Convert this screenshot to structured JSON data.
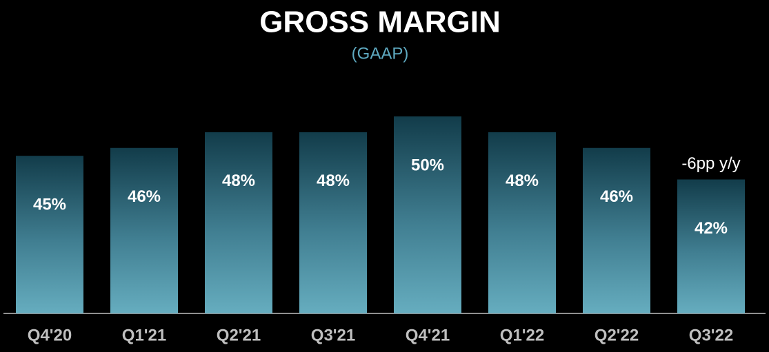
{
  "chart_data": {
    "type": "bar",
    "title": "GROSS MARGIN",
    "subtitle": "(GAAP)",
    "categories": [
      "Q4'20",
      "Q1'21",
      "Q2'21",
      "Q3'21",
      "Q4'21",
      "Q1'22",
      "Q2'22",
      "Q3'22"
    ],
    "values": [
      45,
      46,
      48,
      48,
      50,
      48,
      46,
      42
    ],
    "value_labels": [
      "45%",
      "46%",
      "48%",
      "48%",
      "50%",
      "48%",
      "46%",
      "42%"
    ],
    "annotation": "-6pp y/y",
    "ylim": [
      25,
      50
    ]
  }
}
